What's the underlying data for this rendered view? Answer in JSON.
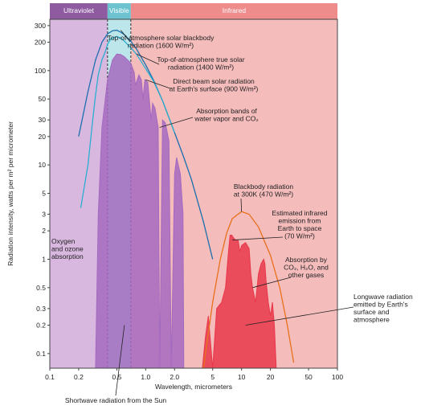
{
  "chart_data": {
    "type": "area",
    "xlabel": "Wavelength, micrometers",
    "ylabel": "Radiation intensity, watts per m² per micrometer",
    "x_scale": "log",
    "y_scale": "log",
    "xlim": [
      0.1,
      100
    ],
    "ylim": [
      0.07,
      350
    ],
    "x_ticks": [
      {
        "v": 0.1,
        "label": "0.1"
      },
      {
        "v": 0.2,
        "label": "0.2"
      },
      {
        "v": 0.5,
        "label": "0.5"
      },
      {
        "v": 1,
        "label": "1.0"
      },
      {
        "v": 2,
        "label": "2.0"
      },
      {
        "v": 5,
        "label": "5"
      },
      {
        "v": 10,
        "label": "10"
      },
      {
        "v": 20,
        "label": "20"
      },
      {
        "v": 50,
        "label": "50"
      },
      {
        "v": 100,
        "label": "100"
      }
    ],
    "y_ticks": [
      {
        "v": 300,
        "label": "300"
      },
      {
        "v": 200,
        "label": "200"
      },
      {
        "v": 100,
        "label": "100"
      },
      {
        "v": 50,
        "label": "50"
      },
      {
        "v": 30,
        "label": "30"
      },
      {
        "v": 20,
        "label": "20"
      },
      {
        "v": 10,
        "label": "10"
      },
      {
        "v": 5,
        "label": "5"
      },
      {
        "v": 3,
        "label": "3"
      },
      {
        "v": 2,
        "label": "2"
      },
      {
        "v": 1,
        "label": "1"
      },
      {
        "v": 0.5,
        "label": "0.5"
      },
      {
        "v": 0.3,
        "label": "0.3"
      },
      {
        "v": 0.2,
        "label": "0.2"
      },
      {
        "v": 0.1,
        "label": "0.1"
      }
    ],
    "bands": [
      {
        "name": "Ultraviolet",
        "from": 0.1,
        "to": 0.4,
        "color": "#d9b8e0",
        "header": "#8e5aa0"
      },
      {
        "name": "Visible",
        "from": 0.4,
        "to": 0.7,
        "color": "#bde6ea",
        "header": "#6cc3cf"
      },
      {
        "name": "Infrared",
        "from": 0.7,
        "to": 100,
        "color": "#f5bcbc",
        "header": "#ee8c8c"
      }
    ],
    "series": [
      {
        "name": "Top-of-atmosphere solar blackbody radiation (1600 W/m²)",
        "kind": "line",
        "color": "#1a6fae",
        "x": [
          0.2,
          0.25,
          0.3,
          0.35,
          0.4,
          0.45,
          0.5,
          0.55,
          0.6,
          0.7,
          0.8,
          1,
          1.2,
          1.5,
          2,
          2.5,
          3,
          4,
          5
        ],
        "y": [
          20,
          60,
          130,
          200,
          245,
          265,
          268,
          255,
          240,
          205,
          170,
          115,
          80,
          48,
          22,
          12,
          7,
          2.5,
          1
        ]
      },
      {
        "name": "Top-of-atmosphere true solar radiation (1400 W/m²)",
        "kind": "line",
        "color": "#2aaed0",
        "x": [
          0.21,
          0.25,
          0.28,
          0.3,
          0.32,
          0.35,
          0.38,
          0.4,
          0.43,
          0.47,
          0.5,
          0.55,
          0.6,
          0.7,
          0.8,
          1,
          1.2,
          1.5,
          2
        ],
        "y": [
          3.5,
          10,
          30,
          55,
          90,
          130,
          160,
          190,
          215,
          225,
          230,
          222,
          205,
          175,
          150,
          105,
          78,
          48,
          22
        ]
      },
      {
        "name": "Direct beam solar radiation at Earth's surface (900 W/m²)",
        "kind": "area",
        "color": "#a46ac0",
        "x": [
          0.3,
          0.32,
          0.35,
          0.4,
          0.45,
          0.5,
          0.55,
          0.6,
          0.7,
          0.76,
          0.78,
          0.85,
          0.9,
          0.94,
          0.98,
          1.05,
          1.1,
          1.14,
          1.18,
          1.25,
          1.35,
          1.4,
          1.5,
          1.6,
          1.75,
          1.85,
          2.0,
          2.1,
          2.3,
          2.45,
          2.5
        ],
        "y": [
          0.07,
          3,
          25,
          80,
          130,
          150,
          148,
          140,
          120,
          95,
          70,
          90,
          80,
          50,
          80,
          75,
          45,
          30,
          45,
          40,
          25,
          0.07,
          30,
          28,
          18,
          0.07,
          8,
          12,
          8,
          3,
          0.07
        ]
      },
      {
        "name": "Estimated infrared emission from Earth to space (70 W/m²)",
        "kind": "area",
        "color": "#e8384a",
        "x": [
          3.9,
          4.2,
          4.5,
          5,
          5.5,
          6.2,
          6.8,
          7.3,
          7.6,
          7.9,
          8.2,
          8.6,
          9.2,
          9.6,
          10,
          11,
          12,
          12.5,
          13,
          14,
          15,
          16,
          17,
          17.5,
          18,
          19,
          20,
          21,
          22,
          23
        ],
        "y": [
          0.07,
          0.15,
          0.25,
          0.07,
          0.3,
          0.35,
          0.5,
          1.2,
          1.8,
          1.8,
          1.7,
          1.6,
          1.6,
          1.2,
          1.4,
          1.5,
          1.3,
          0.7,
          0.5,
          0.35,
          0.7,
          0.9,
          1.0,
          0.9,
          0.6,
          0.35,
          0.25,
          0.35,
          0.2,
          0.07
        ]
      },
      {
        "name": "Blackbody radiation at 300K (470 W/m²)",
        "kind": "line",
        "color": "#e8701a",
        "x": [
          4,
          5,
          6,
          7,
          8,
          10,
          12,
          15,
          20,
          25,
          30,
          35
        ],
        "y": [
          0.07,
          0.35,
          1.0,
          1.9,
          2.7,
          3.2,
          3.0,
          2.2,
          1.1,
          0.5,
          0.2,
          0.08
        ]
      }
    ],
    "annotations": [
      {
        "text": [
          "Top-of-atmosphere solar blackbody",
          "radiation (1600 W/m²)"
        ],
        "target_x": 0.55,
        "target_y": 268
      },
      {
        "text": [
          "Top-of-atmosphere true solar",
          "radiation (1400 W/m²)"
        ],
        "target_x": 0.8,
        "target_y": 150
      },
      {
        "text": [
          "Direct beam solar radiation",
          "at Earth's surface (900 W/m²)"
        ],
        "target_x": 1.0,
        "target_y": 80
      },
      {
        "text": [
          "Absorption bands of",
          "water vapor and CO₂"
        ],
        "target_x": 1.4,
        "target_y": 25
      },
      {
        "text": [
          "Blackbody radiation",
          "at 300K (470 W/m²)"
        ],
        "target_x": 10,
        "target_y": 3.2
      },
      {
        "text": [
          "Estimated infrared",
          "emission from",
          "Earth to space",
          "(70 W/m²)"
        ],
        "target_x": 8,
        "target_y": 1.6
      },
      {
        "text": [
          "Absorption by",
          "CO₂, H₂O, and",
          "other gases"
        ],
        "target_x": 13,
        "target_y": 0.5
      },
      {
        "text": [
          "Oxygen",
          "and ozone",
          "absorption"
        ],
        "target_x": 0.28,
        "target_y": 1.0
      },
      {
        "text": [
          "Longwave radiation",
          "emitted by Earth's",
          "surface and",
          "atmosphere"
        ],
        "target_x": 11,
        "target_y": 0.2
      },
      {
        "text": [
          "Shortwave radiation from the Sun"
        ],
        "target_x": 0.6,
        "target_y": 0.2
      }
    ]
  }
}
